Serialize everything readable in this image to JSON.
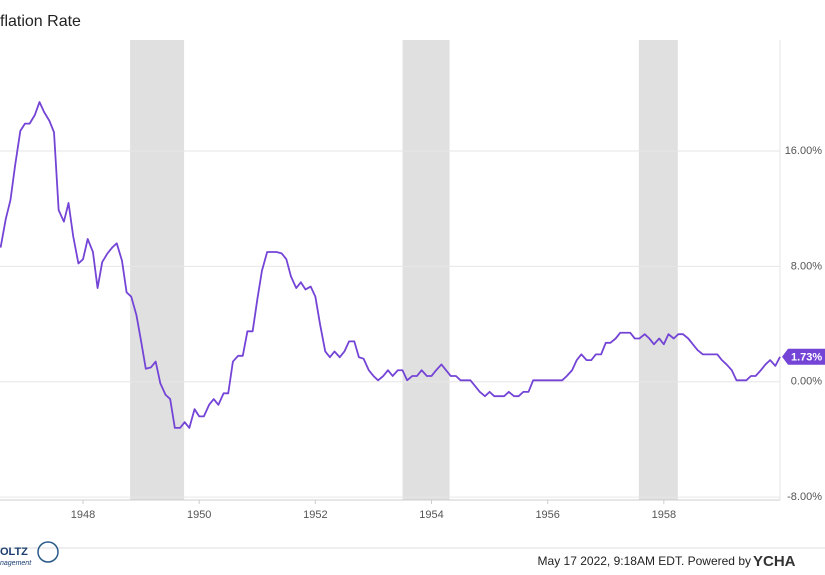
{
  "chart_data": {
    "type": "line",
    "title": "flation Rate",
    "x": [
      1946.58,
      1946.67,
      1946.75,
      1946.83,
      1946.92,
      1947,
      1947.08,
      1947.17,
      1947.25,
      1947.33,
      1947.42,
      1947.5,
      1947.58,
      1947.67,
      1947.75,
      1947.83,
      1947.92,
      1948,
      1948.08,
      1948.17,
      1948.25,
      1948.33,
      1948.42,
      1948.5,
      1948.58,
      1948.67,
      1948.75,
      1948.83,
      1948.92,
      1949,
      1949.08,
      1949.17,
      1949.25,
      1949.33,
      1949.42,
      1949.5,
      1949.58,
      1949.67,
      1949.75,
      1949.83,
      1949.92,
      1950,
      1950.08,
      1950.17,
      1950.25,
      1950.33,
      1950.42,
      1950.5,
      1950.58,
      1950.67,
      1950.75,
      1950.83,
      1950.92,
      1951,
      1951.08,
      1951.17,
      1951.25,
      1951.33,
      1951.42,
      1951.5,
      1951.58,
      1951.67,
      1951.75,
      1951.83,
      1951.92,
      1952,
      1952.08,
      1952.17,
      1952.25,
      1952.33,
      1952.42,
      1952.5,
      1952.58,
      1952.67,
      1952.75,
      1952.83,
      1952.92,
      1953,
      1953.08,
      1953.17,
      1953.25,
      1953.33,
      1953.42,
      1953.5,
      1953.58,
      1953.67,
      1953.75,
      1953.83,
      1953.92,
      1954,
      1954.08,
      1954.17,
      1954.25,
      1954.33,
      1954.42,
      1954.5,
      1954.58,
      1954.67,
      1954.75,
      1954.83,
      1954.92,
      1955,
      1955.08,
      1955.17,
      1955.25,
      1955.33,
      1955.42,
      1955.5,
      1955.58,
      1955.67,
      1955.75,
      1955.83,
      1955.92,
      1956,
      1956.08,
      1956.17,
      1956.25,
      1956.33,
      1956.42,
      1956.5,
      1956.58,
      1956.67,
      1956.75,
      1956.83,
      1956.92,
      1957,
      1957.08,
      1957.17,
      1957.25,
      1957.33,
      1957.42,
      1957.5,
      1957.58,
      1957.67,
      1957.75,
      1957.83,
      1957.92,
      1958,
      1958.08,
      1958.17,
      1958.25,
      1958.33,
      1958.42,
      1958.5,
      1958.58,
      1958.67,
      1958.75,
      1958.83,
      1958.92,
      1959,
      1959.08,
      1959.17,
      1959.25,
      1959.33,
      1959.42,
      1959.5,
      1959.58,
      1959.67,
      1959.75,
      1959.83,
      1959.92,
      1960
    ],
    "values": [
      9.3,
      11.3,
      12.6,
      15.0,
      17.4,
      17.9,
      17.9,
      18.5,
      19.4,
      18.7,
      18.1,
      17.3,
      11.9,
      11.1,
      12.4,
      10.1,
      8.2,
      8.5,
      9.9,
      9.0,
      6.5,
      8.3,
      8.9,
      9.3,
      9.6,
      8.4,
      6.2,
      5.9,
      4.6,
      2.8,
      0.9,
      1.0,
      1.4,
      -0.1,
      -0.9,
      -1.2,
      -3.2,
      -3.2,
      -2.8,
      -3.2,
      -1.9,
      -2.4,
      -2.4,
      -1.6,
      -1.2,
      -1.6,
      -0.8,
      -0.8,
      1.4,
      1.8,
      1.8,
      3.5,
      3.5,
      5.7,
      7.7,
      9.0,
      9.0,
      9.0,
      8.9,
      8.5,
      7.3,
      6.5,
      6.9,
      6.4,
      6.6,
      5.9,
      4.0,
      2.1,
      1.7,
      2.1,
      1.7,
      2.1,
      2.8,
      2.8,
      1.7,
      1.6,
      0.8,
      0.4,
      0.1,
      0.4,
      0.8,
      0.4,
      0.8,
      0.8,
      0.1,
      0.4,
      0.4,
      0.8,
      0.4,
      0.4,
      0.8,
      1.2,
      0.8,
      0.4,
      0.4,
      0.1,
      0.1,
      0.1,
      -0.3,
      -0.7,
      -1.0,
      -0.7,
      -1.0,
      -1.0,
      -1.0,
      -0.7,
      -1.0,
      -1.0,
      -0.7,
      -0.7,
      0.1,
      0.1,
      0.1,
      0.1,
      0.1,
      0.1,
      0.1,
      0.4,
      0.8,
      1.5,
      1.9,
      1.5,
      1.5,
      1.9,
      1.9,
      2.7,
      2.7,
      3.0,
      3.4,
      3.4,
      3.4,
      3.0,
      3.0,
      3.3,
      3.0,
      2.6,
      3.0,
      2.6,
      3.3,
      3.0,
      3.3,
      3.3,
      3.0,
      2.6,
      2.2,
      1.9,
      1.9,
      1.9,
      1.9,
      1.5,
      1.2,
      0.8,
      0.1,
      0.1,
      0.1,
      0.4,
      0.4,
      0.8,
      1.2,
      1.5,
      1.1,
      1.73
    ],
    "value_labels": [
      null,
      null,
      null,
      null,
      null,
      null,
      null,
      null,
      null,
      null,
      null,
      null,
      null,
      null,
      null,
      null,
      null,
      null,
      null,
      null,
      null,
      null,
      null,
      null,
      null,
      null,
      null,
      null,
      null,
      null,
      null,
      null,
      null,
      null,
      null,
      null,
      null,
      null,
      null,
      null,
      null,
      null,
      null,
      null,
      null,
      null,
      null,
      null,
      null,
      null,
      null,
      null,
      null,
      null,
      null,
      null,
      null,
      null,
      null,
      null,
      null,
      null,
      null,
      null,
      null,
      null,
      null,
      null,
      null,
      null,
      null,
      null,
      null,
      null,
      null,
      null,
      null,
      null,
      null,
      null,
      null,
      null,
      null,
      null,
      null,
      null,
      null,
      null,
      null,
      null,
      null,
      null,
      null,
      null,
      null,
      null,
      null,
      null,
      null,
      null,
      null,
      null,
      null,
      null,
      null,
      null,
      null,
      null,
      null,
      null,
      null,
      null,
      null,
      null,
      null,
      null,
      null,
      null,
      null,
      null,
      null,
      null,
      null,
      null,
      null,
      null,
      null,
      null,
      null,
      null,
      null,
      null,
      null,
      null,
      null,
      null,
      null,
      null,
      null,
      null,
      null,
      null,
      null,
      null,
      null,
      null,
      null,
      null,
      null,
      null,
      null,
      null,
      null,
      null,
      null,
      null,
      null,
      null,
      null,
      null,
      null,
      "1.73%"
    ],
    "color": "#7444d6",
    "recessions": [
      [
        1948.81,
        1949.74
      ],
      [
        1953.5,
        1954.31
      ],
      [
        1957.57,
        1958.24
      ]
    ],
    "recession_color": "#e0e0e0",
    "xlim": [
      1946.57,
      1960.0
    ],
    "xticks": [
      1948,
      1950,
      1952,
      1954,
      1956,
      1958
    ],
    "ylim": [
      -8.2,
      23.7
    ],
    "yticks": [
      {
        "value": -8,
        "label": "-8.00%"
      },
      {
        "value": 0,
        "label": "0.00%"
      },
      {
        "value": 8,
        "label": "8.00%"
      },
      {
        "value": 16,
        "label": "16.00%"
      }
    ],
    "grid": true
  },
  "footer": {
    "timestamp": "May 17 2022, 9:18AM EDT.  Powered by",
    "brand": "YCHA"
  },
  "logo": {
    "name": "OLTZ",
    "sub": "nagement"
  }
}
